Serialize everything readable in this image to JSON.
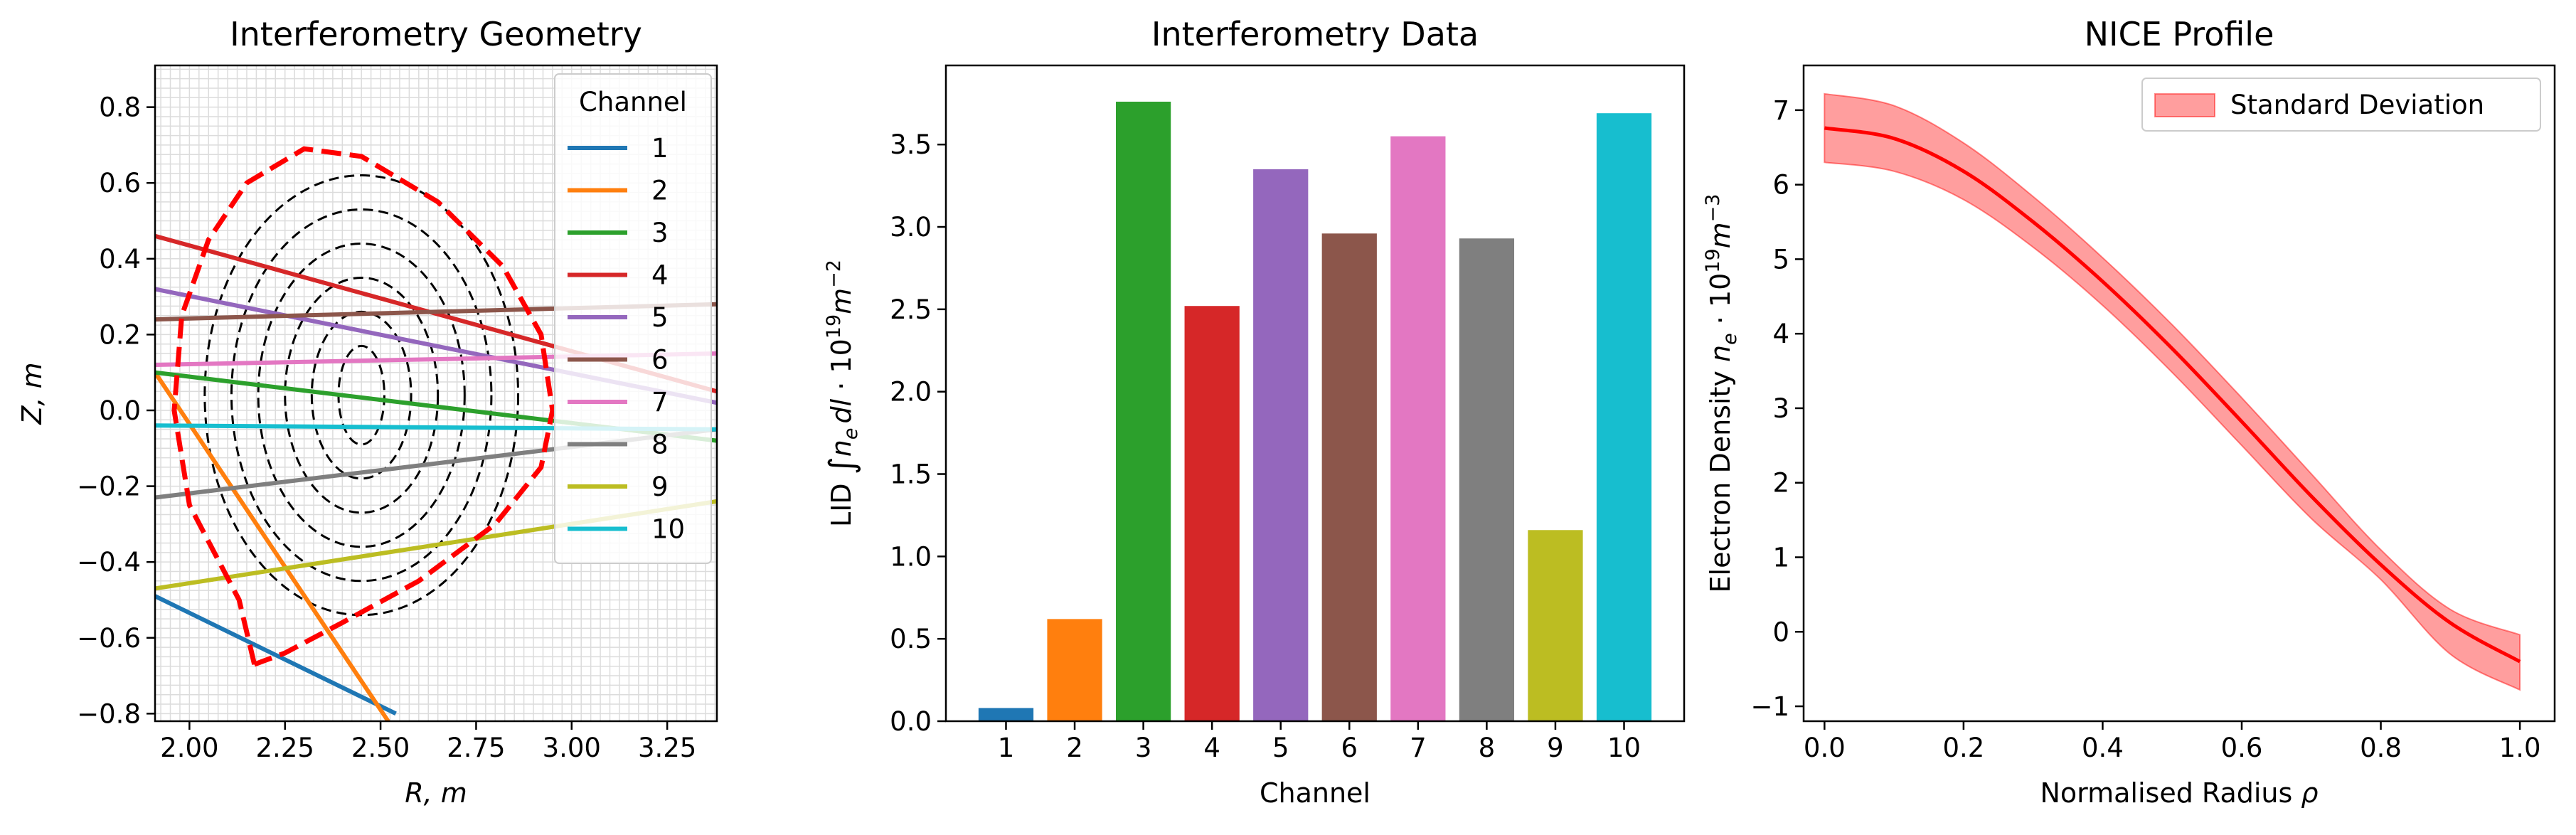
{
  "chart_data": [
    {
      "type": "line",
      "title": "Interferometry Geometry",
      "xlabel": "R, m",
      "ylabel": "Z, m",
      "xlim": [
        1.91,
        3.38
      ],
      "ylim": [
        -0.82,
        0.91
      ],
      "x_ticks": [
        "2.00",
        "2.25",
        "2.50",
        "2.75",
        "3.00",
        "3.25"
      ],
      "y_ticks": [
        "−0.8",
        "−0.6",
        "−0.4",
        "−0.2",
        "0.0",
        "0.2",
        "0.4",
        "0.6",
        "0.8"
      ],
      "grid": "minor",
      "legend": {
        "title": "Channel",
        "placement": "top-right"
      },
      "separatrix": {
        "style": "red-dashed",
        "points": [
          [
            2.17,
            -0.67
          ],
          [
            2.13,
            -0.5
          ],
          [
            2.0,
            -0.25
          ],
          [
            1.96,
            0.0
          ],
          [
            1.98,
            0.25
          ],
          [
            2.05,
            0.45
          ],
          [
            2.15,
            0.6
          ],
          [
            2.3,
            0.69
          ],
          [
            2.45,
            0.67
          ],
          [
            2.65,
            0.55
          ],
          [
            2.82,
            0.38
          ],
          [
            2.92,
            0.2
          ],
          [
            2.95,
            0.0
          ],
          [
            2.92,
            -0.15
          ],
          [
            2.8,
            -0.3
          ],
          [
            2.6,
            -0.45
          ],
          [
            2.4,
            -0.56
          ],
          [
            2.25,
            -0.64
          ],
          [
            2.17,
            -0.67
          ]
        ]
      },
      "flux_surfaces": {
        "style": "black-dashed",
        "center": [
          2.45,
          0.04
        ],
        "radii": [
          [
            0.41,
            0.58
          ],
          [
            0.34,
            0.49
          ],
          [
            0.27,
            0.4
          ],
          [
            0.2,
            0.31
          ],
          [
            0.13,
            0.22
          ],
          [
            0.06,
            0.13
          ]
        ]
      },
      "series": [
        {
          "name": "1",
          "color": "#1f77b4",
          "x": [
            1.91,
            2.54
          ],
          "y": [
            -0.49,
            -0.8
          ]
        },
        {
          "name": "2",
          "color": "#ff7f0e",
          "x": [
            1.91,
            2.52
          ],
          "y": [
            0.1,
            -0.82
          ]
        },
        {
          "name": "3",
          "color": "#2ca02c",
          "x": [
            1.91,
            3.38
          ],
          "y": [
            0.1,
            -0.08
          ]
        },
        {
          "name": "4",
          "color": "#d62728",
          "x": [
            1.91,
            3.38
          ],
          "y": [
            0.46,
            0.05
          ]
        },
        {
          "name": "5",
          "color": "#9467bd",
          "x": [
            1.91,
            3.38
          ],
          "y": [
            0.32,
            0.02
          ]
        },
        {
          "name": "6",
          "color": "#8c564b",
          "x": [
            1.91,
            3.38
          ],
          "y": [
            0.24,
            0.28
          ]
        },
        {
          "name": "7",
          "color": "#e377c2",
          "x": [
            1.91,
            3.38
          ],
          "y": [
            0.12,
            0.15
          ]
        },
        {
          "name": "8",
          "color": "#7f7f7f",
          "x": [
            1.91,
            3.38
          ],
          "y": [
            -0.23,
            -0.05
          ]
        },
        {
          "name": "9",
          "color": "#bcbd22",
          "x": [
            1.91,
            3.38
          ],
          "y": [
            -0.47,
            -0.24
          ]
        },
        {
          "name": "10",
          "color": "#17becf",
          "x": [
            1.91,
            3.38
          ],
          "y": [
            -0.04,
            -0.05
          ]
        }
      ]
    },
    {
      "type": "bar",
      "title": "Interferometry Data",
      "xlabel": "Channel",
      "ylabel": "LID ∫ n_e dl · 10^19 m^−2",
      "ylabel_parts": {
        "a": "LID ",
        "b": "∫",
        "c": "n",
        "d": "e",
        "e": "dl",
        "f": " · 10",
        "g": "19",
        "h": "m",
        "i": "−2"
      },
      "ylim": [
        0,
        3.98
      ],
      "y_ticks": [
        "0.0",
        "0.5",
        "1.0",
        "1.5",
        "2.0",
        "2.5",
        "3.0",
        "3.5"
      ],
      "categories": [
        "1",
        "2",
        "3",
        "4",
        "5",
        "6",
        "7",
        "8",
        "9",
        "10"
      ],
      "values": [
        0.08,
        0.62,
        3.76,
        2.52,
        3.35,
        2.96,
        3.55,
        2.93,
        1.16,
        3.69
      ],
      "colors": [
        "#1f77b4",
        "#ff7f0e",
        "#2ca02c",
        "#d62728",
        "#9467bd",
        "#8c564b",
        "#e377c2",
        "#7f7f7f",
        "#bcbd22",
        "#17becf"
      ]
    },
    {
      "type": "line",
      "title": "NICE Profile",
      "xlabel": "Normalised Radius ρ",
      "xlabel_parts": {
        "a": "Normalised Radius ",
        "b": "ρ"
      },
      "ylabel": "Electron Density n_e · 10^19 m^−3",
      "ylabel_parts": {
        "a": "Electron Density ",
        "b": "n",
        "c": "e",
        "d": " · 10",
        "e": "19",
        "f": "m",
        "g": "−3"
      },
      "xlim": [
        -0.03,
        1.05
      ],
      "ylim": [
        -1.2,
        7.6
      ],
      "x_ticks": [
        "0.0",
        "0.2",
        "0.4",
        "0.6",
        "0.8",
        "1.0"
      ],
      "y_ticks": [
        "−1",
        "0",
        "1",
        "2",
        "3",
        "4",
        "5",
        "6",
        "7"
      ],
      "legend": {
        "placement": "top-right",
        "entries": [
          "Standard Deviation"
        ]
      },
      "series": [
        {
          "name": "Standard Deviation",
          "color": "#ff0000",
          "x": [
            0.0,
            0.1,
            0.2,
            0.3,
            0.4,
            0.5,
            0.6,
            0.7,
            0.8,
            0.9,
            1.0
          ],
          "y": [
            6.76,
            6.62,
            6.18,
            5.5,
            4.7,
            3.8,
            2.82,
            1.82,
            0.9,
            0.12,
            -0.4
          ],
          "lower": [
            6.3,
            6.18,
            5.8,
            5.16,
            4.38,
            3.48,
            2.5,
            1.52,
            0.7,
            -0.3,
            -0.78
          ],
          "upper": [
            7.22,
            7.06,
            6.56,
            5.84,
            5.02,
            4.12,
            3.14,
            2.12,
            1.1,
            0.3,
            -0.04
          ]
        }
      ]
    }
  ]
}
